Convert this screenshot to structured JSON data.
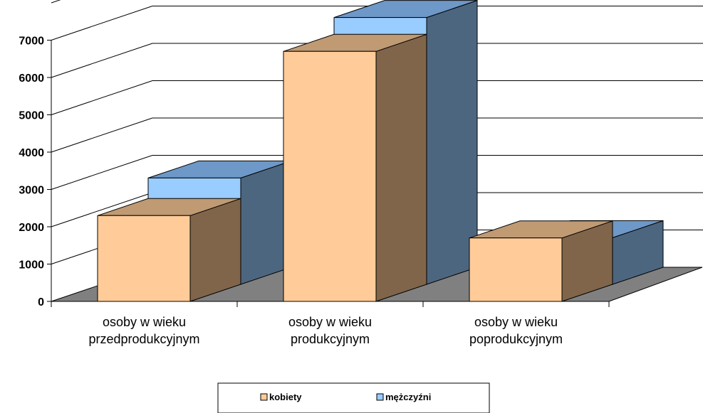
{
  "chart_data": {
    "type": "bar",
    "title": "",
    "xlabel": "",
    "ylabel": "",
    "ylim": [
      0,
      7000
    ],
    "y_ticks": [
      "0",
      "1000",
      "2000",
      "3000",
      "4000",
      "5000",
      "6000",
      "7000"
    ],
    "grid": true,
    "legend_position": "bottom",
    "categories": [
      [
        "osoby w wieku",
        "przedprodukcyjnym"
      ],
      [
        "osoby w wieku",
        "produkcyjnym"
      ],
      [
        "osoby w wieku",
        "poprodukcyjnym"
      ]
    ],
    "series": [
      {
        "name": "kobiety",
        "values": [
          2300,
          6700,
          1700
        ],
        "color": "#ffcc99"
      },
      {
        "name": "mężczyźni",
        "values": [
          2850,
          7150,
          1250
        ],
        "color": "#99ccff"
      }
    ]
  }
}
